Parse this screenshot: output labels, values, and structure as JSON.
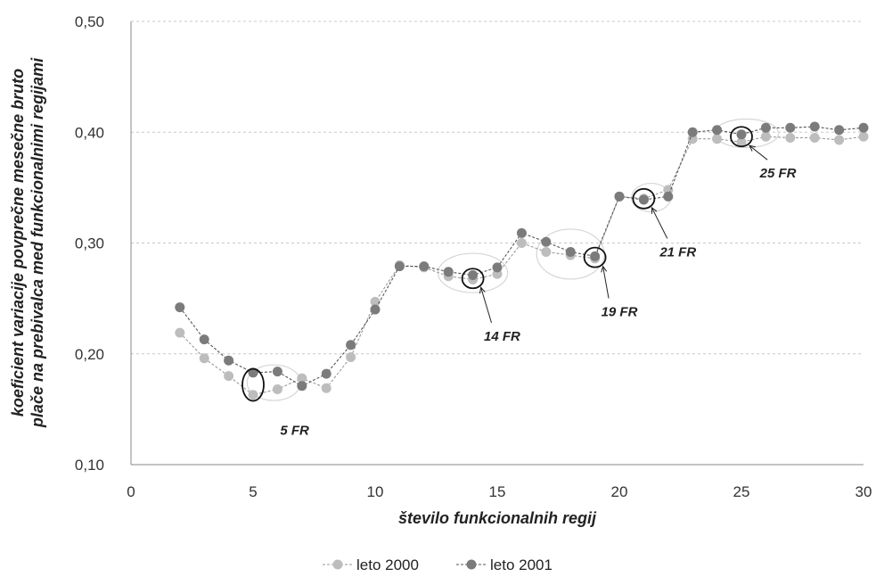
{
  "chart_data": {
    "type": "line",
    "title": "",
    "xlabel": "število funkcionalnih regij",
    "ylabel": "koeficient variacije povprečne mesečne bruto plače na prebivalca med funkcionalnimi regijami",
    "xlim": [
      0,
      30
    ],
    "ylim": [
      0.1,
      0.5
    ],
    "x_ticks": [
      "0",
      "5",
      "10",
      "15",
      "20",
      "25",
      "30"
    ],
    "y_ticks": [
      "0,10",
      "0,20",
      "0,30",
      "0,40",
      "0,50"
    ],
    "grid": true,
    "legend_position": "bottom",
    "x": [
      2,
      3,
      4,
      5,
      6,
      7,
      8,
      9,
      10,
      11,
      12,
      13,
      14,
      15,
      16,
      17,
      18,
      19,
      20,
      21,
      22,
      23,
      24,
      25,
      26,
      27,
      28,
      29,
      30
    ],
    "series": [
      {
        "name": "leto 2000",
        "color": "#bdbdbd",
        "values": [
          0.219,
          0.196,
          0.18,
          0.163,
          0.168,
          0.178,
          0.169,
          0.197,
          0.247,
          0.28,
          0.278,
          0.27,
          0.267,
          0.272,
          0.3,
          0.292,
          0.289,
          0.286,
          0.342,
          0.34,
          0.348,
          0.394,
          0.394,
          0.391,
          0.396,
          0.395,
          0.395,
          0.393,
          0.396
        ]
      },
      {
        "name": "leto 2001",
        "color": "#7b7b7b",
        "values": [
          0.242,
          0.213,
          0.194,
          0.183,
          0.184,
          0.171,
          0.182,
          0.208,
          0.24,
          0.279,
          0.279,
          0.274,
          0.271,
          0.278,
          0.309,
          0.301,
          0.292,
          0.288,
          0.342,
          0.339,
          0.342,
          0.4,
          0.402,
          0.398,
          0.404,
          0.404,
          0.405,
          0.402,
          0.404
        ]
      }
    ],
    "annotations": [
      {
        "label": "5 FR",
        "x": 5,
        "y": 0.172,
        "text_x": 6.7,
        "text_y": 0.127
      },
      {
        "label": "14 FR",
        "x": 14,
        "y": 0.268,
        "text_x": 15.2,
        "text_y": 0.212
      },
      {
        "label": "19 FR",
        "x": 19,
        "y": 0.287,
        "text_x": 20.0,
        "text_y": 0.234
      },
      {
        "label": "21 FR",
        "x": 21,
        "y": 0.34,
        "text_x": 22.4,
        "text_y": 0.288
      },
      {
        "label": "25 FR",
        "x": 25,
        "y": 0.396,
        "text_x": 26.5,
        "text_y": 0.359
      }
    ]
  }
}
